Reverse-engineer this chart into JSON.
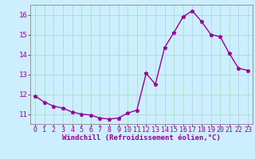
{
  "x": [
    0,
    1,
    2,
    3,
    4,
    5,
    6,
    7,
    8,
    9,
    10,
    11,
    12,
    13,
    14,
    15,
    16,
    17,
    18,
    19,
    20,
    21,
    22,
    23
  ],
  "y": [
    11.9,
    11.6,
    11.4,
    11.3,
    11.1,
    11.0,
    10.95,
    10.8,
    10.75,
    10.8,
    11.05,
    11.2,
    13.05,
    12.5,
    14.35,
    15.1,
    15.9,
    16.2,
    15.65,
    15.0,
    14.9,
    14.05,
    13.3,
    13.2
  ],
  "line_color": "#990099",
  "marker": "*",
  "markersize": 3.5,
  "linewidth": 1.0,
  "bg_color": "#cceeff",
  "grid_color": "#aaddcc",
  "xlabel": "Windchill (Refroidissement éolien,°C)",
  "xlabel_color": "#990099",
  "tick_color": "#990099",
  "xlim": [
    -0.5,
    23.5
  ],
  "ylim": [
    10.5,
    16.5
  ],
  "yticks": [
    11,
    12,
    13,
    14,
    15,
    16
  ],
  "xticks": [
    0,
    1,
    2,
    3,
    4,
    5,
    6,
    7,
    8,
    9,
    10,
    11,
    12,
    13,
    14,
    15,
    16,
    17,
    18,
    19,
    20,
    21,
    22,
    23
  ],
  "xlabel_fontsize": 6.5,
  "tick_fontsize": 6.0,
  "ytick_fontsize": 6.5
}
